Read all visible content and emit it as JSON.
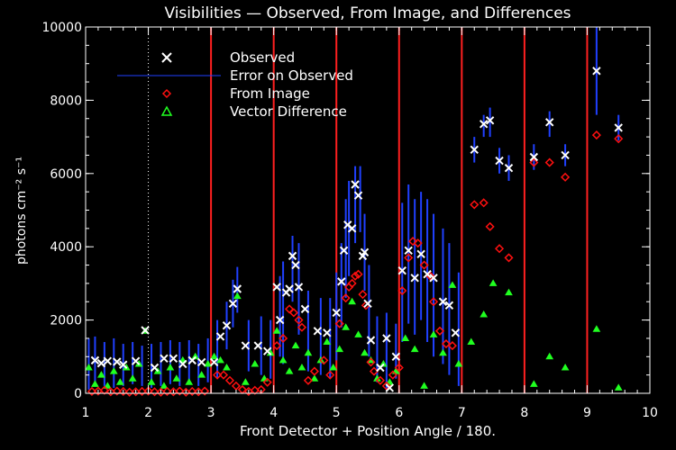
{
  "chart_data": {
    "type": "scatter",
    "title": "Visibilities — Observed, From Image, and Differences",
    "xlabel": "Front Detector + Position Angle / 180.",
    "ylabel": "photons cm⁻² s⁻¹",
    "xlim": [
      1,
      10
    ],
    "ylim": [
      0,
      10000
    ],
    "xticks": [
      1,
      2,
      3,
      4,
      5,
      6,
      7,
      8,
      9,
      10
    ],
    "yticks": [
      0,
      2000,
      4000,
      6000,
      8000,
      10000
    ],
    "detector_boundaries": [
      3,
      4,
      5,
      6,
      7,
      8,
      9
    ],
    "dotted_reference_x": 2,
    "legend": {
      "placement": "top-left",
      "entries": [
        "Observed",
        "Error on Observed",
        "From Image",
        "Vector Difference"
      ]
    },
    "series": [
      {
        "name": "Observed",
        "marker": "x",
        "color": "#ffffff",
        "points": [
          [
            1.15,
            900
          ],
          [
            1.25,
            820
          ],
          [
            1.35,
            880
          ],
          [
            1.5,
            860
          ],
          [
            1.6,
            780
          ],
          [
            1.8,
            880
          ],
          [
            1.95,
            1720
          ],
          [
            2.1,
            700
          ],
          [
            2.25,
            950
          ],
          [
            2.4,
            950
          ],
          [
            2.55,
            800
          ],
          [
            2.7,
            900
          ],
          [
            2.85,
            850
          ],
          [
            3.05,
            850
          ],
          [
            3.15,
            1550
          ],
          [
            3.25,
            1850
          ],
          [
            3.35,
            2450
          ],
          [
            3.42,
            2850
          ],
          [
            3.55,
            1300
          ],
          [
            3.75,
            1300
          ],
          [
            3.9,
            1150
          ],
          [
            4.05,
            2900
          ],
          [
            4.1,
            2000
          ],
          [
            4.2,
            2750
          ],
          [
            4.25,
            2850
          ],
          [
            4.3,
            3750
          ],
          [
            4.35,
            3500
          ],
          [
            4.4,
            2900
          ],
          [
            4.5,
            2300
          ],
          [
            4.7,
            1700
          ],
          [
            4.85,
            1650
          ],
          [
            5.0,
            2200
          ],
          [
            5.08,
            3050
          ],
          [
            5.12,
            3900
          ],
          [
            5.18,
            4600
          ],
          [
            5.25,
            4500
          ],
          [
            5.3,
            5700
          ],
          [
            5.35,
            5400
          ],
          [
            5.42,
            3750
          ],
          [
            5.45,
            3850
          ],
          [
            5.5,
            2450
          ],
          [
            5.55,
            1450
          ],
          [
            5.7,
            700
          ],
          [
            5.8,
            1500
          ],
          [
            5.85,
            150
          ],
          [
            5.95,
            1000
          ],
          [
            6.05,
            3350
          ],
          [
            6.15,
            3900
          ],
          [
            6.25,
            3150
          ],
          [
            6.35,
            3800
          ],
          [
            6.45,
            3250
          ],
          [
            6.55,
            3150
          ],
          [
            6.7,
            2500
          ],
          [
            6.8,
            2400
          ],
          [
            6.9,
            1650
          ],
          [
            7.2,
            6650
          ],
          [
            7.35,
            7350
          ],
          [
            7.45,
            7450
          ],
          [
            7.6,
            6350
          ],
          [
            7.75,
            6150
          ],
          [
            8.15,
            6450
          ],
          [
            8.4,
            7400
          ],
          [
            8.65,
            6500
          ],
          [
            9.15,
            8800
          ],
          [
            9.5,
            7250
          ]
        ]
      },
      {
        "name": "Error on Observed",
        "marker": "errorbar",
        "color": "#2040ff",
        "intervals": [
          [
            1.05,
            100,
            1500
          ],
          [
            1.15,
            300,
            1550
          ],
          [
            1.3,
            200,
            1400
          ],
          [
            1.45,
            150,
            1500
          ],
          [
            1.6,
            200,
            1350
          ],
          [
            1.75,
            250,
            1400
          ],
          [
            1.9,
            200,
            1300
          ],
          [
            2.05,
            150,
            1350
          ],
          [
            2.2,
            200,
            1400
          ],
          [
            2.35,
            250,
            1450
          ],
          [
            2.5,
            200,
            1400
          ],
          [
            2.65,
            250,
            1450
          ],
          [
            2.8,
            200,
            1350
          ],
          [
            2.95,
            300,
            1500
          ],
          [
            3.1,
            400,
            2000
          ],
          [
            3.25,
            1200,
            2500
          ],
          [
            3.35,
            1800,
            3100
          ],
          [
            3.42,
            2200,
            3450
          ],
          [
            3.6,
            600,
            2000
          ],
          [
            3.8,
            500,
            2100
          ],
          [
            3.95,
            400,
            2000
          ],
          [
            4.1,
            1000,
            3200
          ],
          [
            4.15,
            800,
            3600
          ],
          [
            4.3,
            2500,
            4300
          ],
          [
            4.4,
            1600,
            4100
          ],
          [
            4.55,
            600,
            2800
          ],
          [
            4.75,
            500,
            2600
          ],
          [
            4.9,
            400,
            2600
          ],
          [
            5.0,
            900,
            3300
          ],
          [
            5.08,
            1800,
            4100
          ],
          [
            5.15,
            2600,
            5300
          ],
          [
            5.2,
            3200,
            5800
          ],
          [
            5.3,
            4100,
            6200
          ],
          [
            5.38,
            4400,
            6200
          ],
          [
            5.45,
            2800,
            4900
          ],
          [
            5.52,
            1000,
            3500
          ],
          [
            5.65,
            300,
            2100
          ],
          [
            5.8,
            100,
            2200
          ],
          [
            5.95,
            400,
            1900
          ],
          [
            6.05,
            1400,
            5200
          ],
          [
            6.15,
            1900,
            5700
          ],
          [
            6.25,
            1600,
            5300
          ],
          [
            6.35,
            2000,
            5500
          ],
          [
            6.45,
            1400,
            5300
          ],
          [
            6.55,
            1000,
            4900
          ],
          [
            6.7,
            800,
            4500
          ],
          [
            6.8,
            500,
            4100
          ],
          [
            6.95,
            200,
            3300
          ],
          [
            7.2,
            6300,
            7000
          ],
          [
            7.35,
            7000,
            7600
          ],
          [
            7.45,
            7000,
            7800
          ],
          [
            7.6,
            6000,
            6700
          ],
          [
            7.75,
            5800,
            6500
          ],
          [
            8.15,
            6100,
            6800
          ],
          [
            8.4,
            7000,
            7700
          ],
          [
            8.65,
            6200,
            6800
          ],
          [
            9.15,
            7600,
            10000
          ],
          [
            9.5,
            6900,
            7600
          ]
        ]
      },
      {
        "name": "From Image",
        "marker": "diamond",
        "color": "#ff1010",
        "points": [
          [
            1.1,
            50
          ],
          [
            1.2,
            60
          ],
          [
            1.3,
            80
          ],
          [
            1.4,
            40
          ],
          [
            1.5,
            60
          ],
          [
            1.6,
            50
          ],
          [
            1.7,
            30
          ],
          [
            1.8,
            40
          ],
          [
            1.9,
            50
          ],
          [
            2.0,
            60
          ],
          [
            2.1,
            40
          ],
          [
            2.2,
            30
          ],
          [
            2.3,
            50
          ],
          [
            2.4,
            40
          ],
          [
            2.5,
            60
          ],
          [
            2.6,
            30
          ],
          [
            2.7,
            50
          ],
          [
            2.8,
            40
          ],
          [
            2.9,
            60
          ],
          [
            3.1,
            500
          ],
          [
            3.2,
            500
          ],
          [
            3.3,
            350
          ],
          [
            3.4,
            200
          ],
          [
            3.5,
            100
          ],
          [
            3.6,
            50
          ],
          [
            3.7,
            80
          ],
          [
            3.8,
            100
          ],
          [
            3.9,
            300
          ],
          [
            4.05,
            1300
          ],
          [
            4.15,
            1500
          ],
          [
            4.25,
            2300
          ],
          [
            4.32,
            2200
          ],
          [
            4.4,
            2000
          ],
          [
            4.45,
            1800
          ],
          [
            4.55,
            350
          ],
          [
            4.65,
            600
          ],
          [
            4.8,
            900
          ],
          [
            4.9,
            500
          ],
          [
            5.05,
            1900
          ],
          [
            5.15,
            2600
          ],
          [
            5.2,
            2900
          ],
          [
            5.25,
            3000
          ],
          [
            5.3,
            3200
          ],
          [
            5.35,
            3250
          ],
          [
            5.42,
            2700
          ],
          [
            5.47,
            2400
          ],
          [
            5.55,
            850
          ],
          [
            5.6,
            600
          ],
          [
            5.7,
            350
          ],
          [
            5.8,
            200
          ],
          [
            5.9,
            500
          ],
          [
            6.0,
            700
          ],
          [
            6.05,
            2800
          ],
          [
            6.15,
            3700
          ],
          [
            6.22,
            4150
          ],
          [
            6.3,
            4100
          ],
          [
            6.4,
            3500
          ],
          [
            6.5,
            3200
          ],
          [
            6.55,
            2500
          ],
          [
            6.65,
            1700
          ],
          [
            6.75,
            1350
          ],
          [
            6.85,
            1300
          ],
          [
            7.2,
            5150
          ],
          [
            7.35,
            5200
          ],
          [
            7.45,
            4550
          ],
          [
            7.6,
            3950
          ],
          [
            7.75,
            3700
          ],
          [
            8.15,
            6300
          ],
          [
            8.4,
            6300
          ],
          [
            8.65,
            5900
          ],
          [
            9.15,
            7050
          ],
          [
            9.5,
            6950
          ]
        ]
      },
      {
        "name": "Vector Difference",
        "marker": "triangle",
        "color": "#20ff20",
        "points": [
          [
            1.05,
            700
          ],
          [
            1.15,
            250
          ],
          [
            1.25,
            500
          ],
          [
            1.35,
            200
          ],
          [
            1.45,
            600
          ],
          [
            1.55,
            300
          ],
          [
            1.65,
            700
          ],
          [
            1.75,
            400
          ],
          [
            1.85,
            800
          ],
          [
            1.95,
            1700
          ],
          [
            2.05,
            300
          ],
          [
            2.15,
            600
          ],
          [
            2.25,
            200
          ],
          [
            2.35,
            700
          ],
          [
            2.45,
            400
          ],
          [
            2.55,
            900
          ],
          [
            2.65,
            300
          ],
          [
            2.75,
            1000
          ],
          [
            2.85,
            500
          ],
          [
            2.95,
            800
          ],
          [
            3.05,
            1000
          ],
          [
            3.15,
            900
          ],
          [
            3.25,
            700
          ],
          [
            3.42,
            2650
          ],
          [
            3.55,
            300
          ],
          [
            3.7,
            800
          ],
          [
            3.85,
            400
          ],
          [
            3.95,
            1100
          ],
          [
            4.05,
            1700
          ],
          [
            4.15,
            900
          ],
          [
            4.25,
            600
          ],
          [
            4.35,
            1300
          ],
          [
            4.45,
            700
          ],
          [
            4.55,
            1100
          ],
          [
            4.65,
            400
          ],
          [
            4.75,
            900
          ],
          [
            4.85,
            1400
          ],
          [
            4.95,
            700
          ],
          [
            5.05,
            1200
          ],
          [
            5.15,
            1800
          ],
          [
            5.25,
            2500
          ],
          [
            5.35,
            1600
          ],
          [
            5.45,
            1100
          ],
          [
            5.55,
            900
          ],
          [
            5.65,
            400
          ],
          [
            5.75,
            800
          ],
          [
            5.85,
            300
          ],
          [
            5.95,
            600
          ],
          [
            6.1,
            1500
          ],
          [
            6.25,
            1200
          ],
          [
            6.4,
            200
          ],
          [
            6.55,
            1600
          ],
          [
            6.7,
            1100
          ],
          [
            6.85,
            2950
          ],
          [
            6.95,
            800
          ],
          [
            7.15,
            1400
          ],
          [
            7.35,
            2150
          ],
          [
            7.5,
            3000
          ],
          [
            7.75,
            2750
          ],
          [
            8.15,
            250
          ],
          [
            8.4,
            1000
          ],
          [
            8.65,
            700
          ],
          [
            9.15,
            1750
          ],
          [
            9.5,
            150
          ]
        ]
      }
    ]
  }
}
